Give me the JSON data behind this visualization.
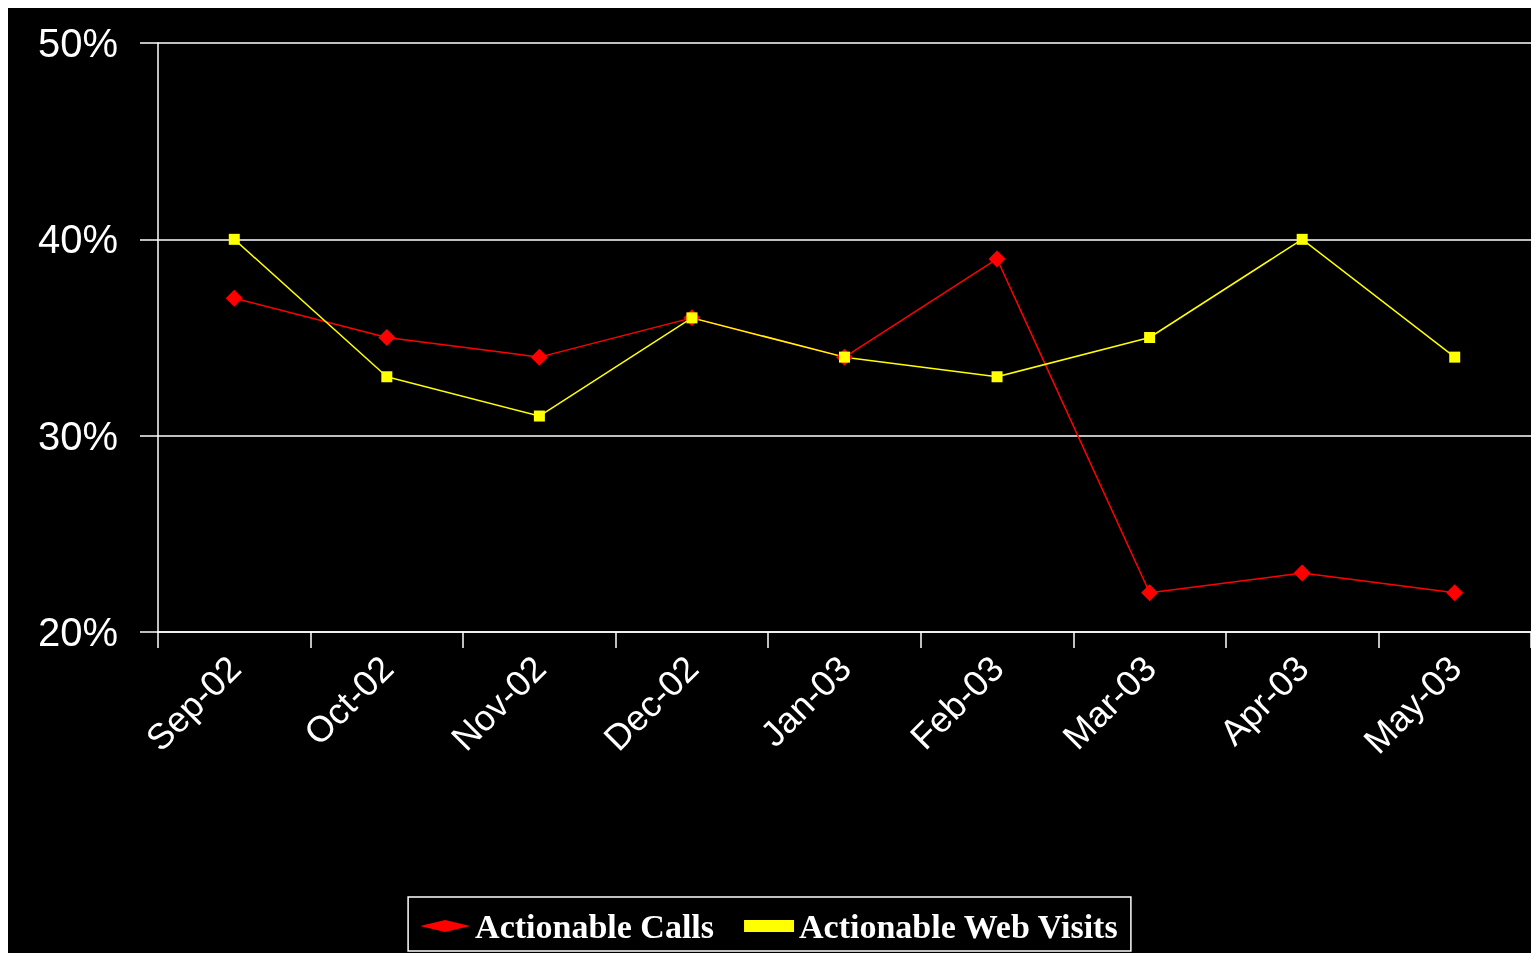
{
  "chart_data": {
    "type": "line",
    "categories": [
      "Sep-02",
      "Oct-02",
      "Nov-02",
      "Dec-02",
      "Jan-03",
      "Feb-03",
      "Mar-03",
      "Apr-03",
      "May-03"
    ],
    "series": [
      {
        "name": "Actionable Calls",
        "color": "#ff0000",
        "marker": "diamond",
        "values": [
          37,
          35,
          34,
          36,
          34,
          39,
          22,
          23,
          22
        ]
      },
      {
        "name": "Actionable Web Visits",
        "color": "#ffff00",
        "marker": "square",
        "values": [
          40,
          33,
          31,
          36,
          34,
          33,
          35,
          40,
          34
        ]
      }
    ],
    "ylim": [
      20,
      50
    ],
    "yticks": [
      {
        "value": 20,
        "label": "20%"
      },
      {
        "value": 30,
        "label": "30%"
      },
      {
        "value": 40,
        "label": "40%"
      },
      {
        "value": 50,
        "label": "50%"
      }
    ],
    "grid": "y",
    "legend": "bottom",
    "line_style": "solid"
  }
}
